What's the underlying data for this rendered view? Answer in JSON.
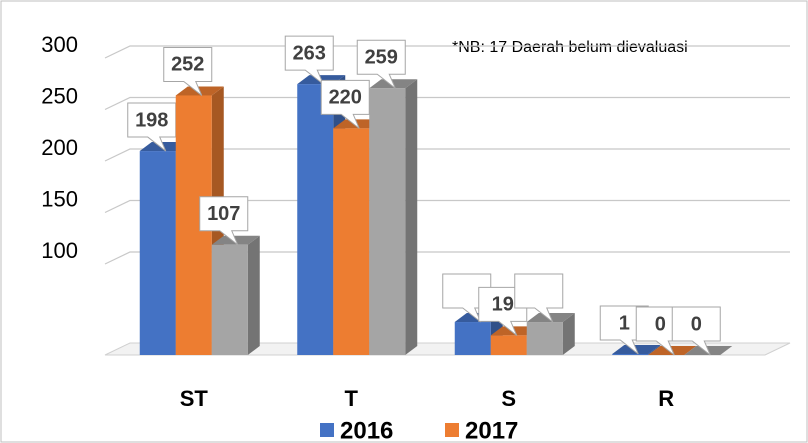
{
  "chart_data": {
    "type": "bar3d",
    "annotation": "*NB: 17 Daerah belum dievaluasi",
    "categories": [
      "ST",
      "T",
      "S",
      "R"
    ],
    "series": [
      {
        "name": "2016",
        "color": "#4472c4",
        "values": [
          198,
          263,
          32,
          1
        ],
        "value_labels": [
          "198",
          "263",
          null,
          "1"
        ]
      },
      {
        "name": "2017",
        "color": "#ed7d31",
        "values": [
          252,
          220,
          19,
          0
        ],
        "value_labels": [
          "252",
          "220",
          "19",
          "0"
        ]
      },
      {
        "color": "#a5a5a5",
        "values": [
          107,
          259,
          32,
          0
        ],
        "value_labels": [
          "107",
          "259",
          null,
          "0"
        ]
      }
    ],
    "ylim": [
      0,
      300
    ],
    "yticks": [
      100,
      150,
      200,
      250,
      300
    ],
    "grid": true
  }
}
